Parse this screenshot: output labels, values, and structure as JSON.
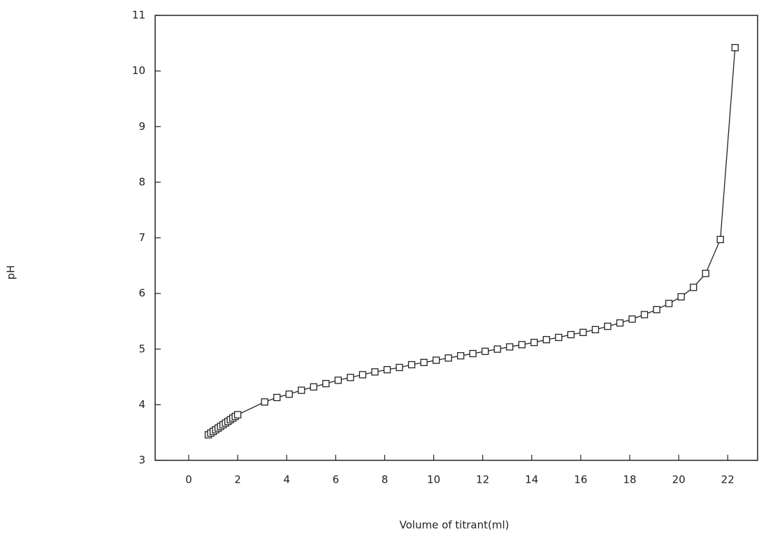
{
  "chart_data": {
    "type": "line",
    "x_label": "Volume of titrant(ml)",
    "y_label": "pH",
    "x": [
      0.8,
      0.9,
      1.0,
      1.1,
      1.2,
      1.3,
      1.4,
      1.5,
      1.6,
      1.7,
      1.8,
      1.9,
      2.0,
      3.1,
      3.6,
      4.1,
      4.6,
      5.1,
      5.6,
      6.1,
      6.6,
      7.1,
      7.6,
      8.1,
      8.6,
      9.1,
      9.6,
      10.1,
      10.6,
      11.1,
      11.6,
      12.1,
      12.6,
      13.1,
      13.6,
      14.1,
      14.6,
      15.1,
      15.6,
      16.1,
      16.6,
      17.1,
      17.6,
      18.1,
      18.6,
      19.1,
      19.6,
      20.1,
      20.6,
      21.1,
      21.7,
      22.3
    ],
    "series": [
      {
        "color": "#222222",
        "values": [
          3.46,
          3.49,
          3.52,
          3.55,
          3.58,
          3.61,
          3.64,
          3.67,
          3.7,
          3.73,
          3.76,
          3.79,
          3.82,
          4.05,
          4.13,
          4.19,
          4.26,
          4.32,
          4.38,
          4.44,
          4.49,
          4.54,
          4.59,
          4.63,
          4.67,
          4.72,
          4.76,
          4.8,
          4.84,
          4.88,
          4.92,
          4.96,
          5.0,
          5.04,
          5.08,
          5.12,
          5.17,
          5.21,
          5.26,
          5.3,
          5.35,
          5.41,
          5.47,
          5.54,
          5.62,
          5.71,
          5.82,
          5.94,
          6.11,
          6.36,
          6.97,
          10.42
        ]
      }
    ],
    "xlim": [
      -1.37,
      23.22
    ],
    "ylim": [
      3,
      11
    ],
    "xticks": [
      0,
      2,
      4,
      6,
      8,
      10,
      12,
      14,
      16,
      18,
      20,
      22
    ],
    "yticks": [
      3,
      4,
      5,
      6,
      7,
      8,
      9,
      10,
      11
    ],
    "marker": "square"
  }
}
